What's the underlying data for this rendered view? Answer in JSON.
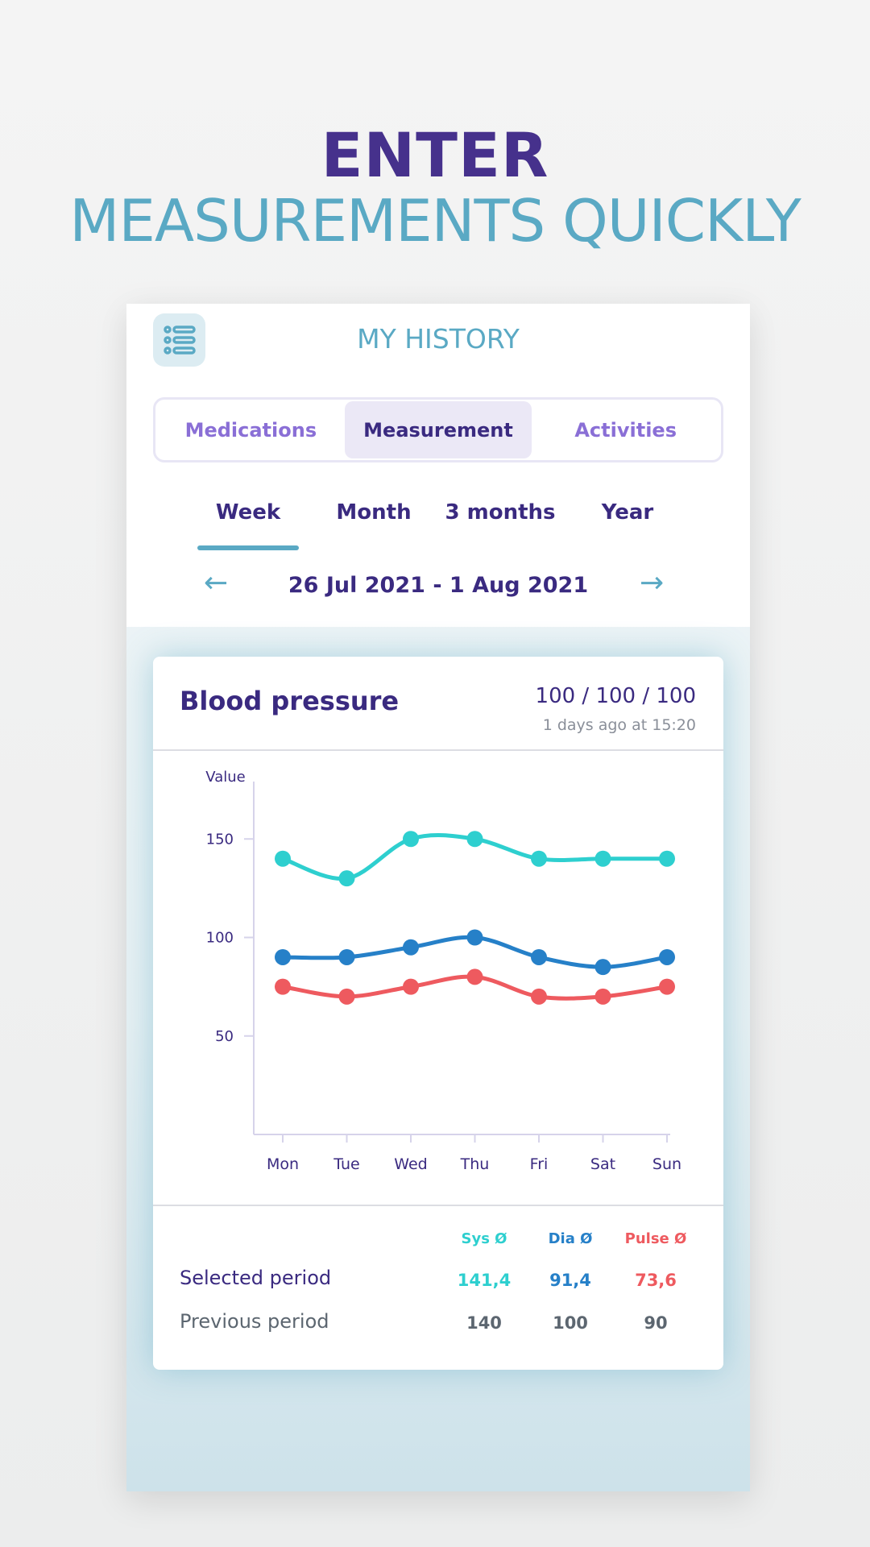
{
  "hero": {
    "line1": "ENTER",
    "line2": "MEASUREMENTS QUICKLY"
  },
  "header": {
    "title": "MY HISTORY",
    "menu_icon": "list-icon"
  },
  "tabs": [
    {
      "label": "Medications",
      "active": false
    },
    {
      "label": "Measurement",
      "active": true
    },
    {
      "label": "Activities",
      "active": false
    }
  ],
  "periods": [
    {
      "label": "Week",
      "active": true
    },
    {
      "label": "Month"
    },
    {
      "label": "3 months"
    },
    {
      "label": "Year"
    }
  ],
  "date_range": {
    "label": "26 Jul 2021 - 1 Aug 2021",
    "prev_icon": "arrow-left-icon",
    "next_icon": "arrow-right-icon"
  },
  "card": {
    "title": "Blood pressure",
    "latest": "100 / 100 / 100",
    "latest_time": "1 days ago at 15:20"
  },
  "colors": {
    "sys": "#2ecfcf",
    "dia": "#2680c8",
    "pulse": "#ee5a5f",
    "primary": "#3a2a80",
    "accent": "#5aa9c4"
  },
  "chart_data": {
    "type": "line",
    "ylabel": "Value",
    "ylim": [
      0,
      180
    ],
    "yticks": [
      150,
      100,
      50
    ],
    "categories": [
      "Mon",
      "Tue",
      "Wed",
      "Thu",
      "Fri",
      "Sat",
      "Sun"
    ],
    "series": [
      {
        "key": "sys",
        "values": [
          140,
          130,
          150,
          150,
          140,
          140,
          140
        ]
      },
      {
        "key": "dia",
        "values": [
          90,
          90,
          95,
          100,
          90,
          85,
          90
        ]
      },
      {
        "key": "pulse",
        "values": [
          75,
          70,
          75,
          80,
          70,
          70,
          75
        ]
      }
    ]
  },
  "summary": {
    "headers": [
      "Sys Ø",
      "Dia Ø",
      "Pulse Ø"
    ],
    "rows": [
      {
        "label": "Selected period",
        "values": [
          "141,4",
          "91,4",
          "73,6"
        ]
      },
      {
        "label": "Previous period",
        "values": [
          "140",
          "100",
          "90"
        ]
      }
    ]
  }
}
